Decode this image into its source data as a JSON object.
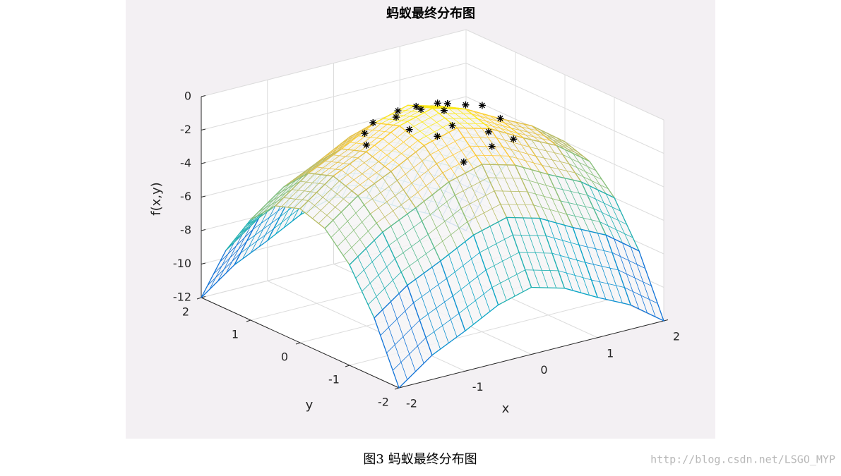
{
  "chart_data": {
    "type": "surface3d",
    "title": "蚂蚁最终分布图",
    "x_label": "x",
    "y_label": "y",
    "z_label": "f(x,y)",
    "xlim": [
      -2,
      2
    ],
    "ylim": [
      -2,
      2
    ],
    "zlim": [
      -12,
      0
    ],
    "xticks": [
      -2,
      -1,
      0,
      1,
      2
    ],
    "yticks": [
      -2,
      -1,
      0,
      1,
      2
    ],
    "zticks": [
      -12,
      -10,
      -8,
      -6,
      -4,
      -2,
      0
    ],
    "grid": true,
    "colormap": [
      "#352a87",
      "#0f5cdd",
      "#1481d6",
      "#06a4ca",
      "#2eb7a4",
      "#87bf77",
      "#d1bb59",
      "#fec832",
      "#f9fb0e"
    ],
    "surface": {
      "x": [
        -2,
        -1.5,
        -1,
        -0.5,
        0,
        0.5,
        1,
        1.5,
        2
      ],
      "y": [
        -2,
        -1.5,
        -1,
        -0.5,
        0,
        0.5,
        1,
        1.5,
        2
      ],
      "z": [
        [
          -12,
          -10.55,
          -9.6,
          -8.55,
          -8,
          -8.55,
          -9.6,
          -10.55,
          -12
        ],
        [
          -8.5,
          -7.05,
          -6.1,
          -5.05,
          -4.5,
          -5.05,
          -6.1,
          -7.05,
          -8.5
        ],
        [
          -6,
          -4.55,
          -3.6,
          -2.55,
          -2,
          -2.55,
          -3.6,
          -4.55,
          -6
        ],
        [
          -4.5,
          -3.05,
          -2.1,
          -1.05,
          -0.5,
          -1.05,
          -2.1,
          -3.05,
          -4.5
        ],
        [
          -4,
          -2.55,
          -1.6,
          -0.55,
          0,
          -0.55,
          -1.6,
          -2.55,
          -4
        ],
        [
          -4.5,
          -3.05,
          -2.1,
          -1.05,
          -0.5,
          -1.05,
          -2.1,
          -3.05,
          -4.5
        ],
        [
          -6,
          -4.55,
          -3.6,
          -2.55,
          -2,
          -2.55,
          -3.6,
          -4.55,
          -6
        ],
        [
          -8.5,
          -7.05,
          -6.1,
          -5.05,
          -4.5,
          -5.05,
          -6.1,
          -7.05,
          -8.5
        ],
        [
          -12,
          -10.55,
          -9.6,
          -8.55,
          -8,
          -8.55,
          -9.6,
          -10.55,
          -12
        ]
      ]
    },
    "points": {
      "color": "#000000",
      "x": [
        -0.1,
        0.1,
        0.3,
        -0.4,
        0.5,
        -0.6,
        0.0,
        0.6,
        -0.3,
        0.2,
        -0.8,
        0.8,
        0.4,
        -0.5,
        0.0,
        0.9,
        -1.0,
        0.3,
        -0.2,
        0.7
      ],
      "y": [
        0.1,
        -0.1,
        0.3,
        0.2,
        0.0,
        0.4,
        -0.4,
        0.5,
        -0.5,
        0.6,
        0.3,
        -0.3,
        -0.6,
        -0.2,
        0.7,
        0.2,
        0.0,
        -0.8,
        -0.9,
        -0.7
      ],
      "z": [
        -0.1,
        -0.1,
        -0.4,
        -0.4,
        -0.3,
        -0.8,
        -0.5,
        -1.0,
        -0.7,
        -0.9,
        -1.1,
        -1.0,
        -1.0,
        -0.5,
        -1.1,
        -1.0,
        -1.2,
        -1.5,
        -1.8,
        -1.6
      ]
    }
  },
  "caption": "图3 蚂蚁最终分布图",
  "watermark": "http://blog.csdn.net/LSGO_MYP"
}
